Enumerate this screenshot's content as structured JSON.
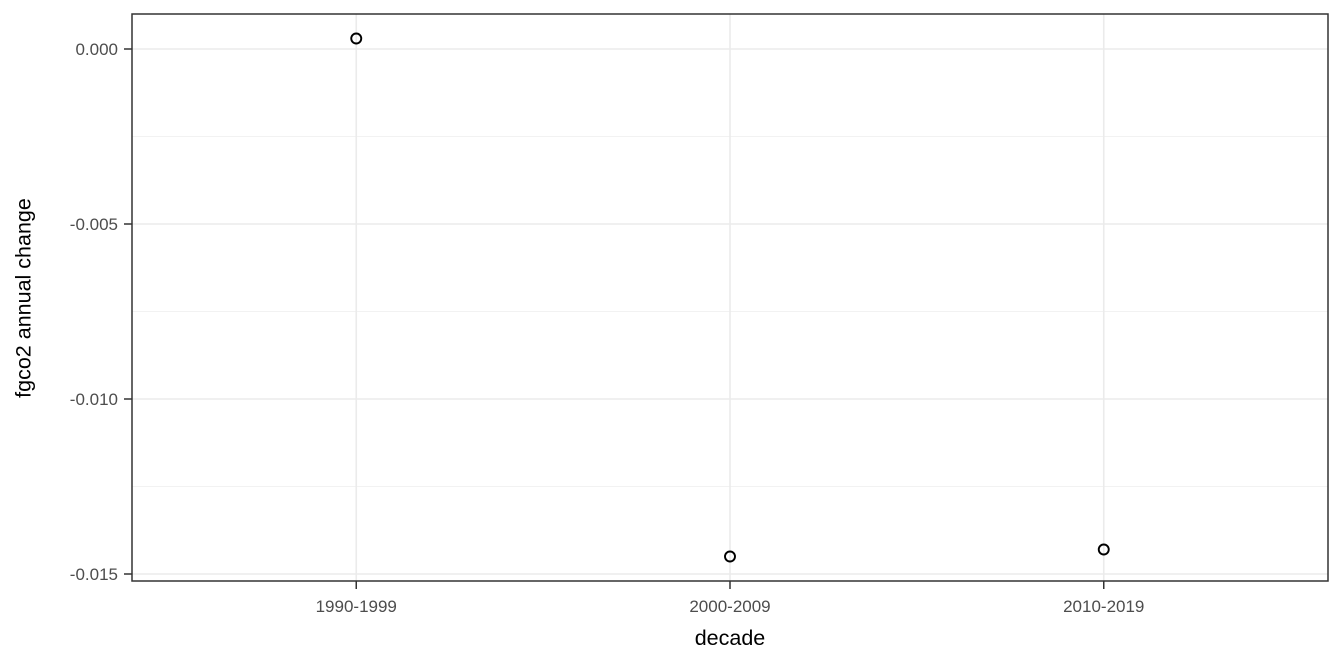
{
  "chart_data": {
    "type": "scatter",
    "title": "",
    "xlabel": "decade",
    "ylabel": "fgco2 annual change",
    "categories": [
      "1990-1999",
      "2000-2009",
      "2010-2019"
    ],
    "values": [
      0.0003,
      -0.0145,
      -0.0143
    ],
    "y_ticks": [
      {
        "value": 0.0,
        "label": "0.000"
      },
      {
        "value": -0.005,
        "label": "-0.005"
      },
      {
        "value": -0.01,
        "label": "-0.010"
      },
      {
        "value": -0.015,
        "label": "-0.015"
      }
    ],
    "y_minor_ticks": [
      -0.0025,
      -0.0075,
      -0.0125
    ],
    "ylim": [
      -0.0152,
      0.001
    ],
    "grid": "on",
    "legend": "none",
    "point_style": "open-circle",
    "colors": {
      "background": "#FFFFFF",
      "panel_background": "#FFFFFF",
      "panel_border": "#333333",
      "grid_major": "#EBEBEB",
      "grid_minor": "#F2F2F2",
      "tick_mark": "#333333",
      "tick_label": "#4D4D4D",
      "axis_title": "#000000",
      "point_stroke": "#000000"
    }
  }
}
